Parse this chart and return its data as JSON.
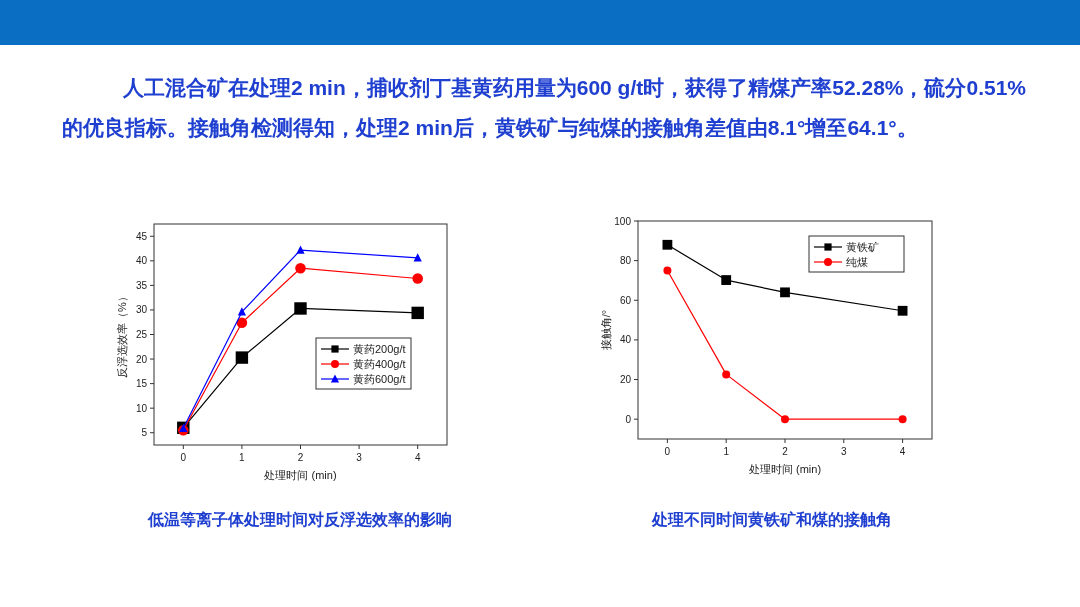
{
  "chart_data": [
    {
      "type": "line",
      "title": "低温等离子体处理时间对反浮选效率的影响",
      "xlabel": "处理时间 (min)",
      "ylabel": "反浮选效率（%）",
      "annotations": [
        "人工混合矿在处理2 min，捕收剂丁基黄药用量为600 g/t时，获得了精煤产率52.28%，硫分0.51%的优良指标。接触角检测得知，处理2 min后，黄铁矿与纯煤的接触角差值由8.1°增至64.1°。"
      ],
      "x": [
        0,
        1,
        2,
        4
      ],
      "xlim": [
        -0.5,
        4.5
      ],
      "xticks": [
        0,
        1,
        2,
        3,
        4
      ],
      "ylim": [
        2.5,
        47.5
      ],
      "yticks": [
        5,
        10,
        15,
        20,
        25,
        30,
        35,
        40,
        45
      ],
      "grid": false,
      "legend": "bottom right",
      "series": [
        {
          "name": "黄药200g/t",
          "color": "#000000",
          "marker": "square",
          "values": [
            6,
            20.3,
            30.3,
            29.4
          ]
        },
        {
          "name": "黄药400g/t",
          "color": "#ff0000",
          "marker": "circle",
          "values": [
            5.5,
            27.4,
            38.5,
            36.4
          ]
        },
        {
          "name": "黄药600g/t",
          "color": "#0000ff",
          "marker": "triangle",
          "values": [
            5.9,
            29.6,
            42.2,
            40.6
          ]
        }
      ]
    },
    {
      "type": "line",
      "title": "处理不同时间黄铁矿和煤的接触角",
      "xlabel": "处理时间 (min)",
      "ylabel": "接触角/°",
      "x": [
        0,
        1,
        2,
        4
      ],
      "xlim": [
        -0.5,
        4.5
      ],
      "xticks": [
        0,
        1,
        2,
        3,
        4
      ],
      "ylim": [
        -10,
        100
      ],
      "yticks": [
        0,
        20,
        40,
        60,
        80,
        100
      ],
      "grid": false,
      "legend": "top right",
      "series": [
        {
          "name": "黄铁矿",
          "color": "#000000",
          "marker": "square",
          "values": [
            88,
            70.2,
            64,
            54.7
          ]
        },
        {
          "name": "纯煤",
          "color": "#ff0000",
          "marker": "circle",
          "values": [
            75,
            22.6,
            0,
            0
          ]
        }
      ]
    }
  ]
}
